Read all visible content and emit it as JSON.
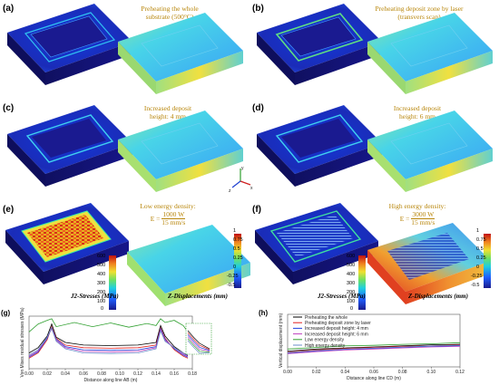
{
  "panels": {
    "a": {
      "label": "(a)",
      "caption": [
        "Preheating the whole",
        "substrate (500°C)"
      ]
    },
    "b": {
      "label": "(b)",
      "caption": [
        "Preheating deposit zone by laser",
        "(transvers scan)"
      ]
    },
    "c": {
      "label": "(c)",
      "caption": [
        "Increased deposit",
        "height: 4 mm"
      ]
    },
    "d": {
      "label": "(d)",
      "caption": [
        "Increased deposit",
        "height: 6 mm"
      ]
    },
    "e": {
      "label": "(e)",
      "caption_top": "Low energy density:",
      "formula_lhs": "E =",
      "formula_num": "1000 W",
      "formula_den": "15 mm/s"
    },
    "f": {
      "label": "(f)",
      "caption_top": "High energy density:",
      "formula_lhs": "E =",
      "formula_num": "3000 W",
      "formula_den": "15 mm/s"
    },
    "g": {
      "label": "(g)"
    },
    "h": {
      "label": "(h)"
    }
  },
  "axes_triad": {
    "x": "x",
    "y": "y",
    "z": "z"
  },
  "colorbars": {
    "stress": {
      "title": "J2-Stresses (MPa)",
      "ticks": [
        "600",
        "500",
        "400",
        "300",
        "200",
        "100",
        "0"
      ]
    },
    "disp": {
      "title": "Z-Displacements (mm)",
      "ticks": [
        "1",
        "0.75",
        "0.5",
        "0.25",
        "0",
        "-0.25",
        "-0.5"
      ]
    }
  },
  "chart_data": [
    {
      "type": "line",
      "title": "",
      "xlabel": "Distance along line AB (m)",
      "ylabel": "Von Mises residual stresses (MPa)",
      "xlim": [
        0,
        0.18
      ],
      "xticks": [
        "0.00",
        "0.02",
        "0.04",
        "0.06",
        "0.08",
        "0.10",
        "0.12",
        "0.14",
        "0.16",
        "0.18"
      ],
      "yticks": [],
      "series": [
        {
          "color": "#000000",
          "x": [
            0,
            0.01,
            0.02,
            0.025,
            0.03,
            0.04,
            0.06,
            0.09,
            0.12,
            0.14,
            0.145,
            0.15,
            0.16,
            0.17,
            0.175
          ],
          "y": [
            0.3,
            0.4,
            0.62,
            0.85,
            0.6,
            0.5,
            0.45,
            0.44,
            0.45,
            0.5,
            0.82,
            0.62,
            0.42,
            0.3,
            0.25
          ]
        },
        {
          "color": "#e02020",
          "x": [
            0,
            0.01,
            0.02,
            0.025,
            0.03,
            0.04,
            0.06,
            0.09,
            0.12,
            0.14,
            0.145,
            0.15,
            0.16,
            0.17,
            0.175
          ],
          "y": [
            0.2,
            0.3,
            0.55,
            0.8,
            0.58,
            0.45,
            0.4,
            0.39,
            0.4,
            0.45,
            0.78,
            0.58,
            0.36,
            0.24,
            0.2
          ]
        },
        {
          "color": "#2040e0",
          "x": [
            0,
            0.01,
            0.02,
            0.025,
            0.03,
            0.04,
            0.06,
            0.09,
            0.12,
            0.14,
            0.145,
            0.15,
            0.16,
            0.17,
            0.175
          ],
          "y": [
            0.22,
            0.32,
            0.58,
            0.78,
            0.56,
            0.42,
            0.36,
            0.35,
            0.36,
            0.42,
            0.76,
            0.56,
            0.38,
            0.26,
            0.22
          ]
        },
        {
          "color": "#c040c0",
          "x": [
            0,
            0.01,
            0.02,
            0.025,
            0.03,
            0.04,
            0.06,
            0.09,
            0.12,
            0.14,
            0.145,
            0.15,
            0.16,
            0.17,
            0.175
          ],
          "y": [
            0.24,
            0.34,
            0.6,
            0.76,
            0.54,
            0.4,
            0.33,
            0.32,
            0.33,
            0.4,
            0.74,
            0.54,
            0.4,
            0.28,
            0.24
          ]
        },
        {
          "color": "#30a030",
          "x": [
            0,
            0.01,
            0.02,
            0.025,
            0.03,
            0.05,
            0.07,
            0.09,
            0.11,
            0.13,
            0.14,
            0.145,
            0.15,
            0.16,
            0.17,
            0.175
          ],
          "y": [
            0.7,
            0.85,
            0.92,
            0.95,
            0.8,
            0.88,
            0.8,
            0.87,
            0.79,
            0.86,
            0.82,
            0.95,
            0.88,
            0.92,
            0.82,
            0.7
          ]
        },
        {
          "color": "#6a8ec8",
          "x": [
            0,
            0.01,
            0.02,
            0.025,
            0.03,
            0.04,
            0.06,
            0.09,
            0.12,
            0.14,
            0.145,
            0.15,
            0.16,
            0.17,
            0.175
          ],
          "y": [
            0.26,
            0.36,
            0.6,
            0.77,
            0.52,
            0.38,
            0.3,
            0.29,
            0.3,
            0.38,
            0.72,
            0.52,
            0.4,
            0.3,
            0.26
          ]
        }
      ]
    },
    {
      "type": "line",
      "title": "",
      "xlabel": "Distance along line CD (m)",
      "ylabel": "Vertical displacement (mm)",
      "xlim": [
        0,
        0.12
      ],
      "xticks": [
        "0.00",
        "0.02",
        "0.04",
        "0.06",
        "0.08",
        "0.10",
        "0.12"
      ],
      "yticks": [],
      "legend_position": "top-left",
      "series": [
        {
          "name": "Preheating the whole",
          "color": "#000000",
          "x": [
            0,
            0.02,
            0.04,
            0.06,
            0.08,
            0.1,
            0.12
          ],
          "y": [
            0.3,
            0.34,
            0.36,
            0.38,
            0.4,
            0.42,
            0.43
          ]
        },
        {
          "name": "Preheating deposit zone by laser",
          "color": "#e02020",
          "x": [
            0,
            0.02,
            0.04,
            0.06,
            0.08,
            0.1,
            0.12
          ],
          "y": [
            0.28,
            0.32,
            0.35,
            0.37,
            0.39,
            0.4,
            0.42
          ]
        },
        {
          "name": "Increased deposit height: 4 mm",
          "color": "#2040e0",
          "x": [
            0,
            0.02,
            0.04,
            0.06,
            0.08,
            0.1,
            0.12
          ],
          "y": [
            0.26,
            0.3,
            0.33,
            0.35,
            0.37,
            0.39,
            0.4
          ]
        },
        {
          "name": "Increased deposit height: 6 mm",
          "color": "#c040c0",
          "x": [
            0,
            0.02,
            0.04,
            0.06,
            0.08,
            0.1,
            0.12
          ],
          "y": [
            0.25,
            0.29,
            0.32,
            0.34,
            0.36,
            0.38,
            0.39
          ]
        },
        {
          "name": "Low energy density",
          "color": "#30a030",
          "x": [
            0,
            0.02,
            0.04,
            0.06,
            0.08,
            0.1,
            0.12
          ],
          "y": [
            0.34,
            0.37,
            0.4,
            0.41,
            0.43,
            0.44,
            0.46
          ]
        },
        {
          "name": "High energy density",
          "color": "#6a8ec8",
          "x": [
            0,
            0.02,
            0.04,
            0.06,
            0.08,
            0.1,
            0.12
          ],
          "y": [
            0.27,
            0.31,
            0.34,
            0.36,
            0.38,
            0.4,
            0.41
          ]
        }
      ]
    }
  ]
}
